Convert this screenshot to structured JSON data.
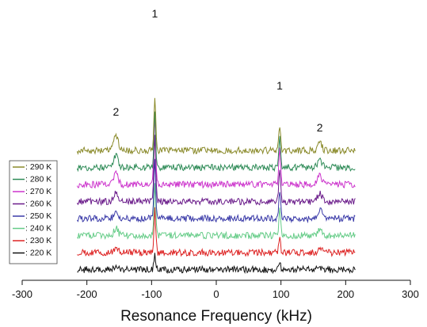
{
  "chart_data": {
    "type": "line",
    "title": "",
    "xlabel": "Resonance Frequency (kHz)",
    "ylabel": "",
    "xlim": [
      -300,
      300
    ],
    "xticks": [
      -300,
      -200,
      -100,
      0,
      100,
      200,
      300
    ],
    "x_range": [
      -215,
      215
    ],
    "legend_position": "left",
    "grid": false,
    "stacked_offsets": true,
    "peak_annotations": [
      {
        "label": "2",
        "x": -155
      },
      {
        "label": "1",
        "x": -95
      },
      {
        "label": "1",
        "x": 98
      },
      {
        "label": "2",
        "x": 160
      }
    ],
    "series": [
      {
        "name": ": 290 K",
        "color": "#8a8a2a",
        "peaks": {
          "p1a": 1.4,
          "p1b": 0.7,
          "p2a": 0.45,
          "p2b": 0.2
        }
      },
      {
        "name": ": 280 K",
        "color": "#2e8b57",
        "peaks": {
          "p1a": 1.5,
          "p1b": 0.8,
          "p2a": 0.35,
          "p2b": 0.2
        }
      },
      {
        "name": ": 270 K",
        "color": "#cc33cc",
        "peaks": {
          "p1a": 1.9,
          "p1b": 1.0,
          "p2a": 0.3,
          "p2b": 0.25
        }
      },
      {
        "name": ": 260 K",
        "color": "#6a1b8a",
        "peaks": {
          "p1a": 1.8,
          "p1b": 0.9,
          "p2a": 0.3,
          "p2b": 0.25
        }
      },
      {
        "name": ": 250 K",
        "color": "#3a3aa8",
        "peaks": {
          "p1a": 1.6,
          "p1b": 0.8,
          "p2a": 0.25,
          "p2b": 0.25
        }
      },
      {
        "name": ": 240 K",
        "color": "#66cc88",
        "peaks": {
          "p1a": 1.4,
          "p1b": 0.7,
          "p2a": 0.2,
          "p2b": 0.15
        }
      },
      {
        "name": ": 230 K",
        "color": "#dd2222",
        "peaks": {
          "p1a": 1.2,
          "p1b": 0.4,
          "p2a": 0.1,
          "p2b": 0.1
        }
      },
      {
        "name": ": 220 K",
        "color": "#111111",
        "peaks": {
          "p1a": 0.4,
          "p1b": 0.2,
          "p2a": 0.05,
          "p2b": 0.05
        }
      }
    ]
  }
}
